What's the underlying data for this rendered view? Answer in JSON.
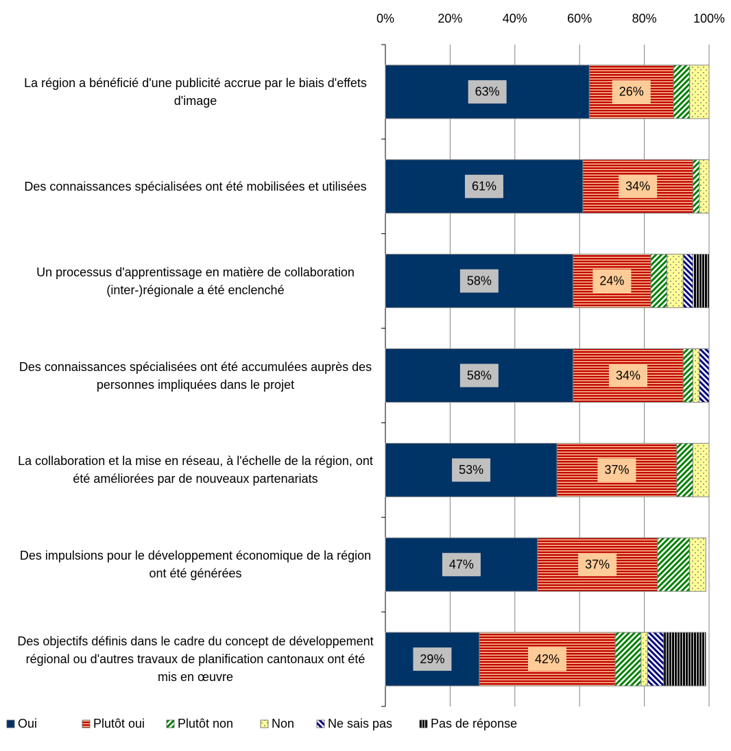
{
  "chart_data": {
    "type": "stacked-bar-horizontal",
    "categories": [
      "La région a bénéficié d'une publicité accrue par le biais d'effets d'image",
      "Des connaissances spécialisées ont été mobilisées et utilisées",
      "Un processus d'apprentissage en matière de collaboration (inter-)régionale a été enclenché",
      "Des connaissances spécialisées ont été accumulées auprès des personnes impliquées dans le projet",
      "La collaboration et la mise en réseau, à l'échelle de la région, ont été améliorées par de nouveaux partenariats",
      "Des impulsions pour le développement économique de la région ont été générées",
      "Des objectifs définis dans le cadre du concept de développement régional ou d'autres travaux de planification cantonaux ont été mis en œuvre"
    ],
    "series": [
      {
        "name": "Oui",
        "color": "#003366",
        "pattern": "solid",
        "values": [
          63,
          61,
          58,
          58,
          53,
          47,
          29
        ],
        "value_labels": [
          "63%",
          "61%",
          "58%",
          "58%",
          "53%",
          "47%",
          "29%"
        ]
      },
      {
        "name": "Plutôt oui",
        "color": "#c00000",
        "pattern": "horizontal-stripes",
        "values": [
          26,
          34,
          24,
          34,
          37,
          37,
          42
        ],
        "value_labels": [
          "26%",
          "34%",
          "24%",
          "34%",
          "37%",
          "37%",
          "42%"
        ]
      },
      {
        "name": "Plutôt non",
        "color": "#008000",
        "pattern": "diagonal-stripes",
        "values": [
          5,
          2,
          5,
          3,
          5,
          10,
          8
        ]
      },
      {
        "name": "Non",
        "color": "#ffff99",
        "pattern": "dots",
        "values": [
          6,
          3,
          5,
          2,
          5,
          5,
          2
        ]
      },
      {
        "name": "Ne sais pas",
        "color": "#000080",
        "pattern": "diagonal-stripes-reverse",
        "values": [
          null,
          null,
          3,
          3,
          null,
          null,
          5
        ]
      },
      {
        "name": "Pas de réponse",
        "color": "#000000",
        "pattern": "vertical-stripes",
        "values": [
          null,
          null,
          5,
          null,
          null,
          null,
          13
        ]
      }
    ],
    "xlim": [
      0,
      100
    ],
    "xticks": [
      {
        "value": 0,
        "label": "0%"
      },
      {
        "value": 20,
        "label": "20%"
      },
      {
        "value": 40,
        "label": "40%"
      },
      {
        "value": 60,
        "label": "60%"
      },
      {
        "value": 80,
        "label": "80%"
      },
      {
        "value": 100,
        "label": "100%"
      }
    ],
    "grid": true,
    "legend": "bottom"
  }
}
